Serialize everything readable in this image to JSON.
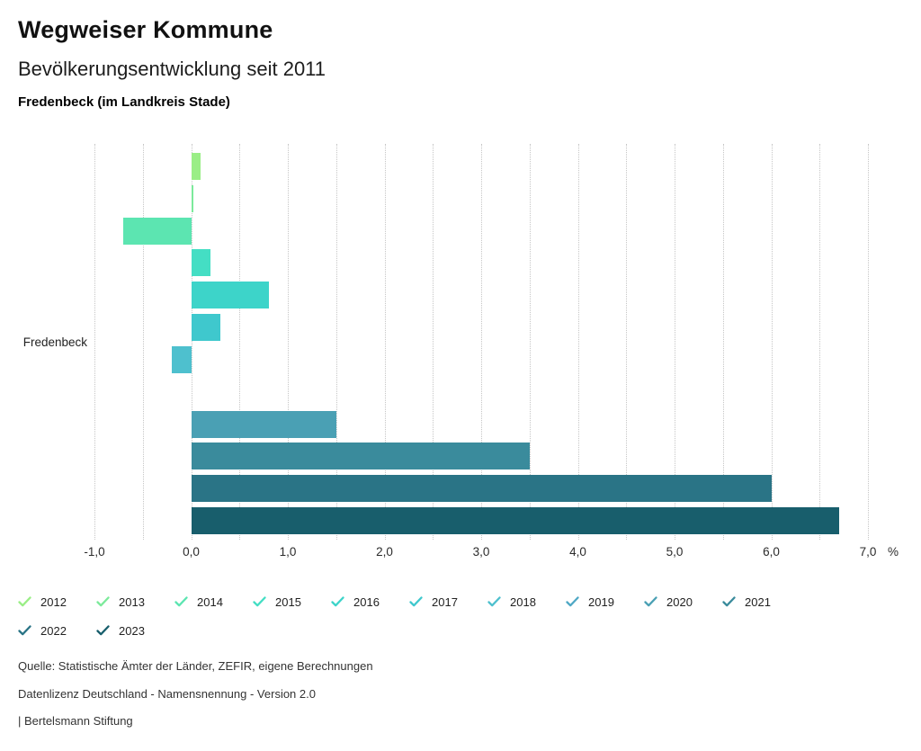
{
  "header": {
    "title": "Wegweiser Kommune",
    "subtitle": "Bevölkerungsentwicklung seit 2011",
    "region": "Fredenbeck (im Landkreis Stade)"
  },
  "chart_data": {
    "type": "bar",
    "orientation": "horizontal",
    "title": "Bevölkerungsentwicklung seit 2011",
    "category": "Fredenbeck",
    "unit_label": "%",
    "xlim": [
      -1.0,
      7.0
    ],
    "grid_step": 0.5,
    "grid_style": "dotted-vertical",
    "x_ticks": [
      {
        "value": -1,
        "label": "-1,0"
      },
      {
        "value": 0,
        "label": "0,0"
      },
      {
        "value": 1,
        "label": "1,0"
      },
      {
        "value": 2,
        "label": "2,0"
      },
      {
        "value": 3,
        "label": "3,0"
      },
      {
        "value": 4,
        "label": "4,0"
      },
      {
        "value": 5,
        "label": "5,0"
      },
      {
        "value": 6,
        "label": "6,0"
      },
      {
        "value": 7,
        "label": "7,0"
      }
    ],
    "series": [
      {
        "year": "2012",
        "value": 0.1,
        "color": "#9AEE86"
      },
      {
        "year": "2013",
        "value": 0.02,
        "color": "#7CEA9B"
      },
      {
        "year": "2014",
        "value": -0.7,
        "color": "#5CE5B1"
      },
      {
        "year": "2015",
        "value": 0.2,
        "color": "#44DEC4"
      },
      {
        "year": "2016",
        "value": 0.8,
        "color": "#3DD4C9"
      },
      {
        "year": "2017",
        "value": 0.3,
        "color": "#3FC8CD"
      },
      {
        "year": "2018",
        "value": -0.2,
        "color": "#4EC0CE"
      },
      {
        "year": "2019",
        "value": 0.0,
        "color": "#4FA8C5"
      },
      {
        "year": "2020",
        "value": 1.5,
        "color": "#4AA0B4"
      },
      {
        "year": "2021",
        "value": 3.5,
        "color": "#3A8B9C"
      },
      {
        "year": "2022",
        "value": 6.0,
        "color": "#2A7486"
      },
      {
        "year": "2023",
        "value": 6.7,
        "color": "#185E6C"
      }
    ],
    "legend": {
      "position": "bottom",
      "marker": "checkmark",
      "all_checked": true
    }
  },
  "footer": {
    "source": "Quelle: Statistische Ämter der Länder, ZEFIR, eigene Berechnungen",
    "license": "Datenlizenz Deutschland - Namensnennung - Version 2.0",
    "attribution": "| Bertelsmann Stiftung"
  }
}
